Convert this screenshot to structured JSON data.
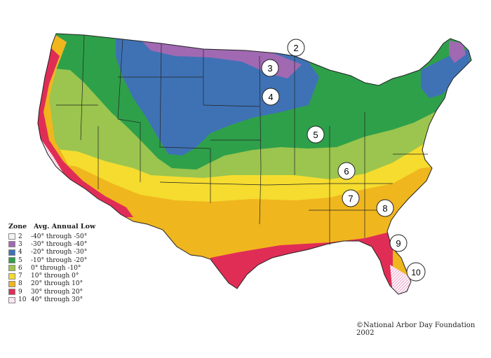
{
  "legend": {
    "zone_header": "Zone",
    "low_header": "Avg. Annual Low",
    "zones": [
      {
        "zone": "2",
        "range": "-40° through -50°",
        "color": "#f4f4f4"
      },
      {
        "zone": "3",
        "range": "-30° through -40°",
        "color": "#a069b2"
      },
      {
        "zone": "4",
        "range": "-20° through -30°",
        "color": "#3f72b5"
      },
      {
        "zone": "5",
        "range": "-10° through -20°",
        "color": "#2ea04a"
      },
      {
        "zone": "6",
        "range": "0° through -10°",
        "color": "#9bc54e"
      },
      {
        "zone": "7",
        "range": "10° through 0°",
        "color": "#f5dc2e"
      },
      {
        "zone": "8",
        "range": "20° through 10°",
        "color": "#f0b61e"
      },
      {
        "zone": "9",
        "range": "30° through 20°",
        "color": "#e02d56"
      },
      {
        "zone": "10",
        "range": "40° through 30°",
        "color": "#f3a6cf"
      }
    ]
  },
  "map_labels": [
    "2",
    "3",
    "4",
    "5",
    "6",
    "7",
    "8",
    "9",
    "10"
  ],
  "copyright": "©National Arbor Day Foundation 2002"
}
